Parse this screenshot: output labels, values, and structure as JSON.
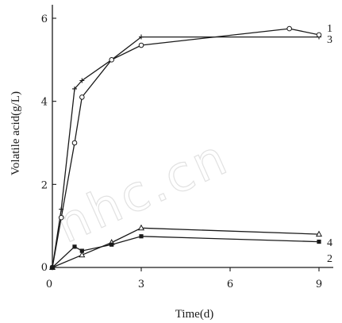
{
  "watermark": "nhc.cn",
  "chart_data": {
    "type": "line",
    "xlabel": "Time(d)",
    "ylabel": "Volatile acid(g/L)",
    "xlim": [
      0,
      9.3
    ],
    "ylim": [
      0,
      6.4
    ],
    "xticks": [
      0,
      3,
      6,
      9
    ],
    "yticks": [
      0,
      2,
      4,
      6
    ],
    "grid": false,
    "series": [
      {
        "name": "1",
        "marker": "plus",
        "x": [
          0,
          0.3,
          0.75,
          1,
          2,
          3,
          9
        ],
        "y": [
          0,
          1.4,
          4.3,
          4.5,
          5.0,
          5.55,
          5.55
        ]
      },
      {
        "name": "3",
        "marker": "circle",
        "x": [
          0,
          0.3,
          0.75,
          1,
          2,
          3,
          8,
          9
        ],
        "y": [
          0,
          1.2,
          3.0,
          4.1,
          5.0,
          5.35,
          5.75,
          5.6
        ]
      },
      {
        "name": "4",
        "marker": "triangle",
        "x": [
          0,
          1,
          2,
          3,
          9
        ],
        "y": [
          0,
          0.3,
          0.6,
          0.95,
          0.8
        ]
      },
      {
        "name": "2",
        "marker": "dot",
        "x": [
          0,
          0.75,
          1,
          2,
          3,
          9
        ],
        "y": [
          0,
          0.5,
          0.4,
          0.55,
          0.75,
          0.62
        ]
      }
    ]
  }
}
